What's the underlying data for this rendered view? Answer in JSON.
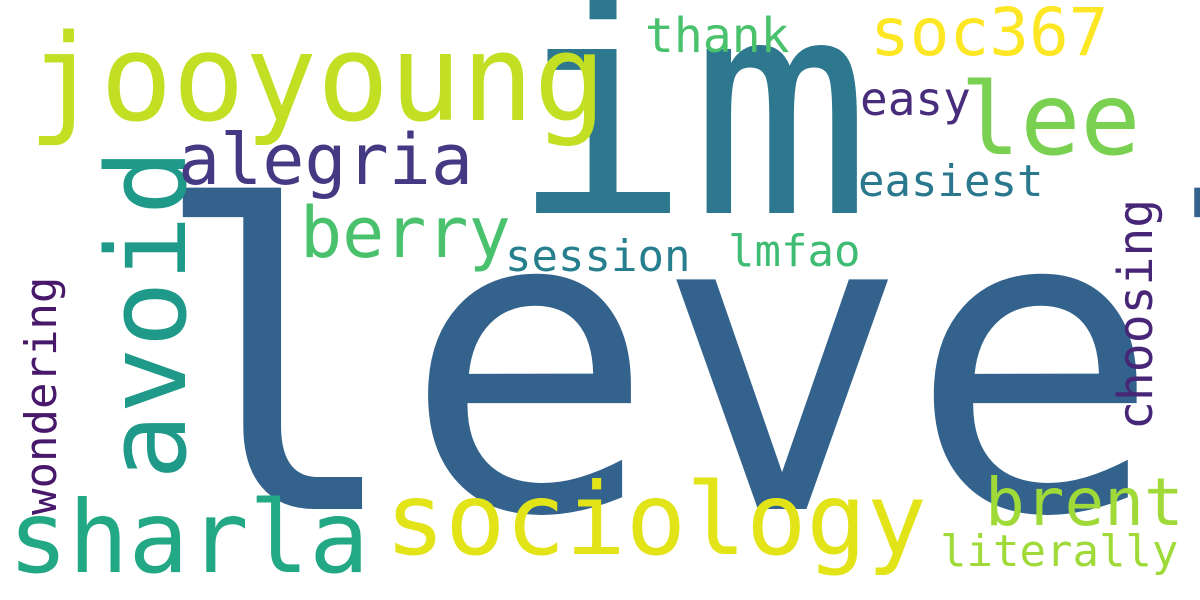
{
  "words": [
    {
      "key": "level",
      "text": "level",
      "color": "#33638d"
    },
    {
      "key": "im",
      "text": "im",
      "color": "#2d788e"
    },
    {
      "key": "jooyoung",
      "text": "jooyoung",
      "color": "#c2df23"
    },
    {
      "key": "avoid",
      "text": "avoid",
      "color": "#1f9a8a"
    },
    {
      "key": "sharla",
      "text": "sharla",
      "color": "#22a884"
    },
    {
      "key": "sociology",
      "text": "sociology",
      "color": "#e2e418"
    },
    {
      "key": "lee",
      "text": "lee",
      "color": "#7ad151"
    },
    {
      "key": "alegria",
      "text": "alegria",
      "color": "#443983"
    },
    {
      "key": "berry",
      "text": "berry",
      "color": "#4ac16d"
    },
    {
      "key": "soc367",
      "text": "soc367",
      "color": "#fde725"
    },
    {
      "key": "brent",
      "text": "brent",
      "color": "#a0da39"
    },
    {
      "key": "thank",
      "text": "thank",
      "color": "#4ac16d"
    },
    {
      "key": "easy",
      "text": "easy",
      "color": "#472d7b"
    },
    {
      "key": "easiest",
      "text": "easiest",
      "color": "#2a788e"
    },
    {
      "key": "session",
      "text": "session",
      "color": "#277f8e"
    },
    {
      "key": "lmfao",
      "text": "lmfao",
      "color": "#3fbc73"
    },
    {
      "key": "literally",
      "text": "literally",
      "color": "#a0da39"
    },
    {
      "key": "choosing",
      "text": "choosing",
      "color": "#482677"
    },
    {
      "key": "wondering",
      "text": "wondering",
      "color": "#48186a"
    }
  ]
}
